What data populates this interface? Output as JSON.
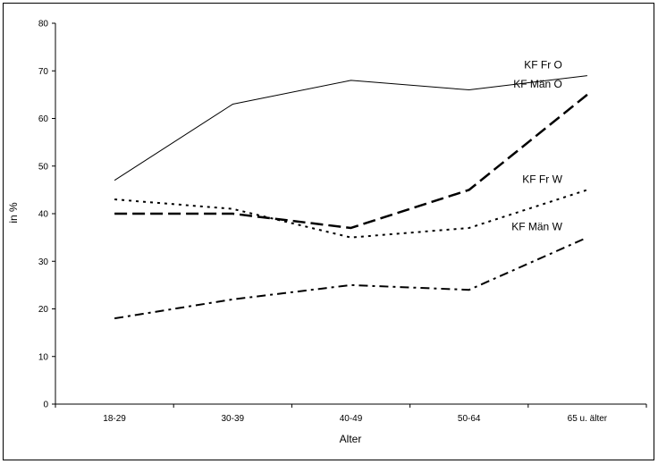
{
  "chart_data": {
    "type": "line",
    "title": "",
    "xlabel": "Alter",
    "ylabel": "in %",
    "categories": [
      "18-29",
      "30-39",
      "40-49",
      "50-64",
      "65 u. älter"
    ],
    "ylim": [
      0,
      80
    ],
    "yticks": [
      0,
      10,
      20,
      30,
      40,
      50,
      60,
      70,
      80
    ],
    "grid": false,
    "legend": "inline labels at line ends",
    "series": [
      {
        "name": "KF Fr O",
        "values": [
          47,
          63,
          68,
          66,
          69
        ],
        "style": "solid",
        "color": "#000000"
      },
      {
        "name": "KF Män O",
        "values": [
          40,
          40,
          37,
          45,
          65
        ],
        "style": "dashed",
        "color": "#000000"
      },
      {
        "name": "KF Fr W",
        "values": [
          43,
          41,
          35,
          37,
          45
        ],
        "style": "dotted",
        "color": "#000000"
      },
      {
        "name": "KF Män W",
        "values": [
          18,
          22,
          25,
          24,
          35
        ],
        "style": "dash-dot",
        "color": "#000000"
      }
    ]
  }
}
